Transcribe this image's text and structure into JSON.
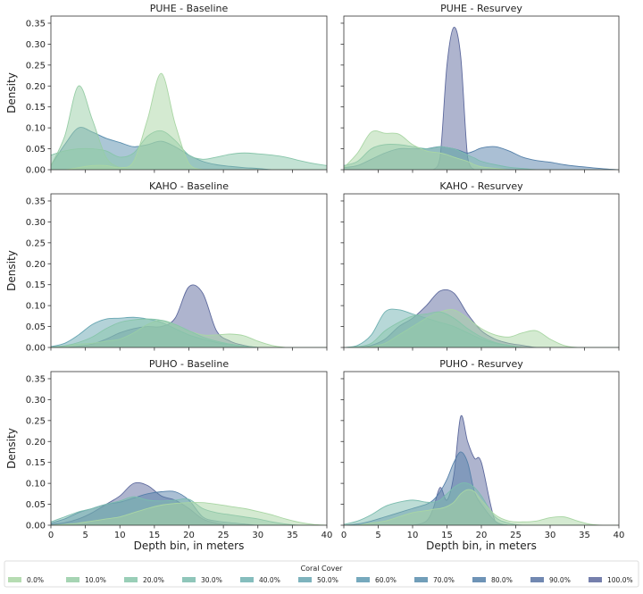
{
  "chart_data": {
    "type": "area",
    "subtype": "kde-facet-grid",
    "ylabel": "Density",
    "xlabel": "Depth bin, in meters",
    "xlim": [
      0,
      40
    ],
    "ylim": [
      0,
      0.367
    ],
    "xticks": [
      "0",
      "5",
      "10",
      "15",
      "20",
      "25",
      "30",
      "35",
      "40"
    ],
    "yticks": [
      "0.00",
      "0.05",
      "0.10",
      "0.15",
      "0.20",
      "0.25",
      "0.30",
      "0.35"
    ],
    "grid": false,
    "legend": {
      "title": "Coral Cover",
      "placement": "bottom",
      "entries": [
        {
          "label": "0.0%",
          "color": "#a9d6a4"
        },
        {
          "label": "10.0%",
          "color": "#97cda6"
        },
        {
          "label": "20.0%",
          "color": "#87c5aa"
        },
        {
          "label": "30.0%",
          "color": "#7bbcae"
        },
        {
          "label": "40.0%",
          "color": "#70b1b1"
        },
        {
          "label": "50.0%",
          "color": "#67a6b2"
        },
        {
          "label": "60.0%",
          "color": "#5e9ab1"
        },
        {
          "label": "70.0%",
          "color": "#588dad"
        },
        {
          "label": "80.0%",
          "color": "#5580a9"
        },
        {
          "label": "90.0%",
          "color": "#5873a3"
        },
        {
          "label": "100.0%",
          "color": "#5d699d"
        }
      ]
    },
    "panels": [
      {
        "title": "PUHE - Baseline",
        "x": [
          0,
          2,
          4,
          6,
          8,
          10,
          12,
          14,
          16,
          18,
          20,
          22,
          24,
          26,
          28,
          30,
          32,
          34,
          36,
          38,
          40
        ],
        "series": [
          {
            "name": "70.0%",
            "values": [
              0.01,
              0.06,
              0.1,
              0.09,
              0.075,
              0.065,
              0.055,
              0.06,
              0.068,
              0.055,
              0.035,
              0.02,
              0.012,
              0.008,
              0.005,
              0.003,
              0,
              0,
              0,
              0,
              0
            ]
          },
          {
            "name": "20.0%",
            "values": [
              0.035,
              0.045,
              0.05,
              0.05,
              0.045,
              0.03,
              0.04,
              0.08,
              0.093,
              0.07,
              0.035,
              0.025,
              0.03,
              0.037,
              0.04,
              0.038,
              0.035,
              0.03,
              0.022,
              0.015,
              0.01
            ]
          },
          {
            "name": "10.0%",
            "values": [
              0.01,
              0.08,
              0.2,
              0.12,
              0.03,
              0.005,
              0,
              0,
              0,
              0,
              0,
              0,
              0,
              0,
              0,
              0,
              0,
              0,
              0,
              0,
              0
            ]
          },
          {
            "name": "0.0%",
            "values": [
              0,
              0,
              0.005,
              0.01,
              0.01,
              0.005,
              0.02,
              0.12,
              0.23,
              0.11,
              0.015,
              0,
              0,
              0,
              0,
              0,
              0,
              0,
              0,
              0,
              0
            ]
          }
        ]
      },
      {
        "title": "PUHE - Resurvey",
        "x": [
          0,
          2,
          4,
          6,
          8,
          10,
          12,
          13,
          14,
          15,
          16,
          17,
          18,
          19,
          20,
          22,
          24,
          26,
          28,
          30,
          32,
          34,
          36,
          38,
          40
        ],
        "series": [
          {
            "name": "100.0%",
            "values": [
              0,
              0,
              0,
              0,
              0,
              0,
              0,
              0,
              0.03,
              0.25,
              0.34,
              0.27,
              0.03,
              0,
              0,
              0,
              0,
              0,
              0,
              0,
              0,
              0,
              0,
              0,
              0
            ]
          },
          {
            "name": "80.0%",
            "values": [
              0.005,
              0.01,
              0.025,
              0.04,
              0.05,
              0.05,
              0.05,
              0.053,
              0.055,
              0.053,
              0.05,
              0.045,
              0.04,
              0.045,
              0.052,
              0.055,
              0.045,
              0.03,
              0.022,
              0.018,
              0.012,
              0.008,
              0.005,
              0.002,
              0
            ]
          },
          {
            "name": "30.0%",
            "values": [
              0.01,
              0.02,
              0.05,
              0.06,
              0.06,
              0.055,
              0.05,
              0.052,
              0.055,
              0.053,
              0.05,
              0.043,
              0.035,
              0.028,
              0.02,
              0.012,
              0.006,
              0.003,
              0,
              0,
              0,
              0,
              0,
              0,
              0
            ]
          },
          {
            "name": "0.0%",
            "values": [
              0.005,
              0.04,
              0.09,
              0.087,
              0.085,
              0.06,
              0.045,
              0.042,
              0.04,
              0.036,
              0.03,
              0.025,
              0.02,
              0.012,
              0.007,
              0.003,
              0,
              0,
              0,
              0,
              0,
              0,
              0,
              0,
              0
            ]
          }
        ]
      },
      {
        "title": "KAHO - Baseline",
        "x": [
          0,
          2,
          4,
          6,
          8,
          10,
          12,
          14,
          16,
          18,
          20,
          22,
          24,
          26,
          28,
          30,
          32,
          34,
          36,
          38,
          40
        ],
        "series": [
          {
            "name": "100.0%",
            "values": [
              0,
              0,
              0.003,
              0.008,
              0.02,
              0.035,
              0.045,
              0.05,
              0.05,
              0.07,
              0.145,
              0.13,
              0.04,
              0.015,
              0.005,
              0,
              0,
              0,
              0,
              0,
              0
            ]
          },
          {
            "name": "50.0%",
            "values": [
              0.002,
              0.01,
              0.03,
              0.055,
              0.068,
              0.07,
              0.072,
              0.068,
              0.06,
              0.045,
              0.03,
              0.02,
              0.012,
              0.006,
              0.003,
              0,
              0,
              0,
              0,
              0,
              0
            ]
          },
          {
            "name": "0.0%",
            "values": [
              0,
              0.003,
              0.008,
              0.01,
              0.015,
              0.02,
              0.035,
              0.055,
              0.065,
              0.055,
              0.04,
              0.03,
              0.03,
              0.032,
              0.028,
              0.015,
              0.005,
              0,
              0,
              0,
              0
            ]
          },
          {
            "name": "20.0%",
            "values": [
              0.001,
              0.004,
              0.012,
              0.025,
              0.045,
              0.06,
              0.066,
              0.068,
              0.065,
              0.055,
              0.04,
              0.025,
              0.015,
              0.008,
              0.003,
              0,
              0,
              0,
              0,
              0,
              0
            ]
          }
        ]
      },
      {
        "title": "KAHO - Resurvey",
        "x": [
          0,
          2,
          4,
          6,
          8,
          10,
          12,
          14,
          16,
          18,
          20,
          22,
          24,
          26,
          28,
          30,
          32,
          34,
          36,
          38,
          40
        ],
        "series": [
          {
            "name": "100.0%",
            "values": [
              0,
              0,
              0.005,
              0.02,
              0.05,
              0.07,
              0.1,
              0.135,
              0.13,
              0.08,
              0.04,
              0.02,
              0.01,
              0.005,
              0,
              0,
              0,
              0,
              0,
              0,
              0
            ]
          },
          {
            "name": "40.0%",
            "values": [
              0,
              0.005,
              0.03,
              0.085,
              0.09,
              0.08,
              0.07,
              0.06,
              0.05,
              0.035,
              0.02,
              0.01,
              0.005,
              0,
              0,
              0,
              0,
              0,
              0,
              0,
              0
            ]
          },
          {
            "name": "0.0%",
            "values": [
              0,
              0,
              0.002,
              0.01,
              0.03,
              0.05,
              0.07,
              0.085,
              0.09,
              0.07,
              0.045,
              0.03,
              0.025,
              0.035,
              0.04,
              0.02,
              0.005,
              0,
              0,
              0,
              0
            ]
          },
          {
            "name": "20.0%",
            "values": [
              0,
              0.002,
              0.01,
              0.04,
              0.06,
              0.075,
              0.08,
              0.085,
              0.07,
              0.045,
              0.025,
              0.012,
              0.005,
              0,
              0,
              0,
              0,
              0,
              0,
              0,
              0
            ]
          }
        ]
      },
      {
        "title": "PUHO - Baseline",
        "x": [
          0,
          2,
          4,
          6,
          8,
          10,
          12,
          14,
          16,
          18,
          20,
          22,
          24,
          26,
          28,
          30,
          32,
          34,
          36,
          38,
          40
        ],
        "series": [
          {
            "name": "100.0%",
            "values": [
              0.002,
              0.006,
              0.015,
              0.03,
              0.05,
              0.07,
              0.1,
              0.095,
              0.07,
              0.06,
              0.04,
              0.015,
              0.005,
              0,
              0,
              0,
              0,
              0,
              0,
              0,
              0
            ]
          },
          {
            "name": "80.0%",
            "values": [
              0.005,
              0.015,
              0.03,
              0.04,
              0.05,
              0.055,
              0.065,
              0.075,
              0.08,
              0.08,
              0.06,
              0.02,
              0.01,
              0.006,
              0.003,
              0,
              0,
              0,
              0,
              0,
              0
            ]
          },
          {
            "name": "30.0%",
            "values": [
              0.008,
              0.02,
              0.032,
              0.04,
              0.05,
              0.058,
              0.068,
              0.06,
              0.058,
              0.06,
              0.062,
              0.04,
              0.03,
              0.025,
              0.02,
              0.015,
              0.008,
              0.003,
              0,
              0,
              0
            ]
          },
          {
            "name": "0.0%",
            "values": [
              0,
              0.002,
              0.005,
              0.01,
              0.015,
              0.02,
              0.03,
              0.04,
              0.048,
              0.052,
              0.054,
              0.054,
              0.05,
              0.045,
              0.04,
              0.033,
              0.025,
              0.015,
              0.007,
              0.002,
              0
            ]
          }
        ]
      },
      {
        "title": "PUHO - Resurvey",
        "x": [
          0,
          2,
          4,
          6,
          8,
          10,
          12,
          13,
          14,
          15,
          16,
          17,
          18,
          19,
          20,
          22,
          24,
          26,
          28,
          30,
          32,
          34,
          36,
          38,
          40
        ],
        "series": [
          {
            "name": "100.0%",
            "values": [
              0,
              0,
              0,
              0,
              0,
              0,
              0.01,
              0.04,
              0.09,
              0.06,
              0.12,
              0.26,
              0.2,
              0.16,
              0.15,
              0.01,
              0,
              0,
              0,
              0,
              0,
              0,
              0,
              0,
              0
            ]
          },
          {
            "name": "80.0%",
            "values": [
              0,
              0.003,
              0.01,
              0.02,
              0.03,
              0.04,
              0.05,
              0.06,
              0.08,
              0.11,
              0.15,
              0.175,
              0.15,
              0.08,
              0.05,
              0.01,
              0,
              0,
              0,
              0,
              0,
              0,
              0,
              0,
              0
            ]
          },
          {
            "name": "30.0%",
            "values": [
              0.002,
              0.01,
              0.025,
              0.045,
              0.055,
              0.06,
              0.055,
              0.055,
              0.06,
              0.075,
              0.09,
              0.1,
              0.1,
              0.09,
              0.07,
              0.02,
              0.005,
              0,
              0,
              0,
              0,
              0,
              0,
              0,
              0
            ]
          },
          {
            "name": "0.0%",
            "values": [
              0,
              0,
              0.005,
              0.01,
              0.02,
              0.03,
              0.035,
              0.038,
              0.04,
              0.045,
              0.055,
              0.075,
              0.085,
              0.08,
              0.06,
              0.025,
              0.01,
              0.008,
              0.01,
              0.018,
              0.02,
              0.01,
              0.002,
              0,
              0
            ]
          }
        ]
      }
    ]
  }
}
